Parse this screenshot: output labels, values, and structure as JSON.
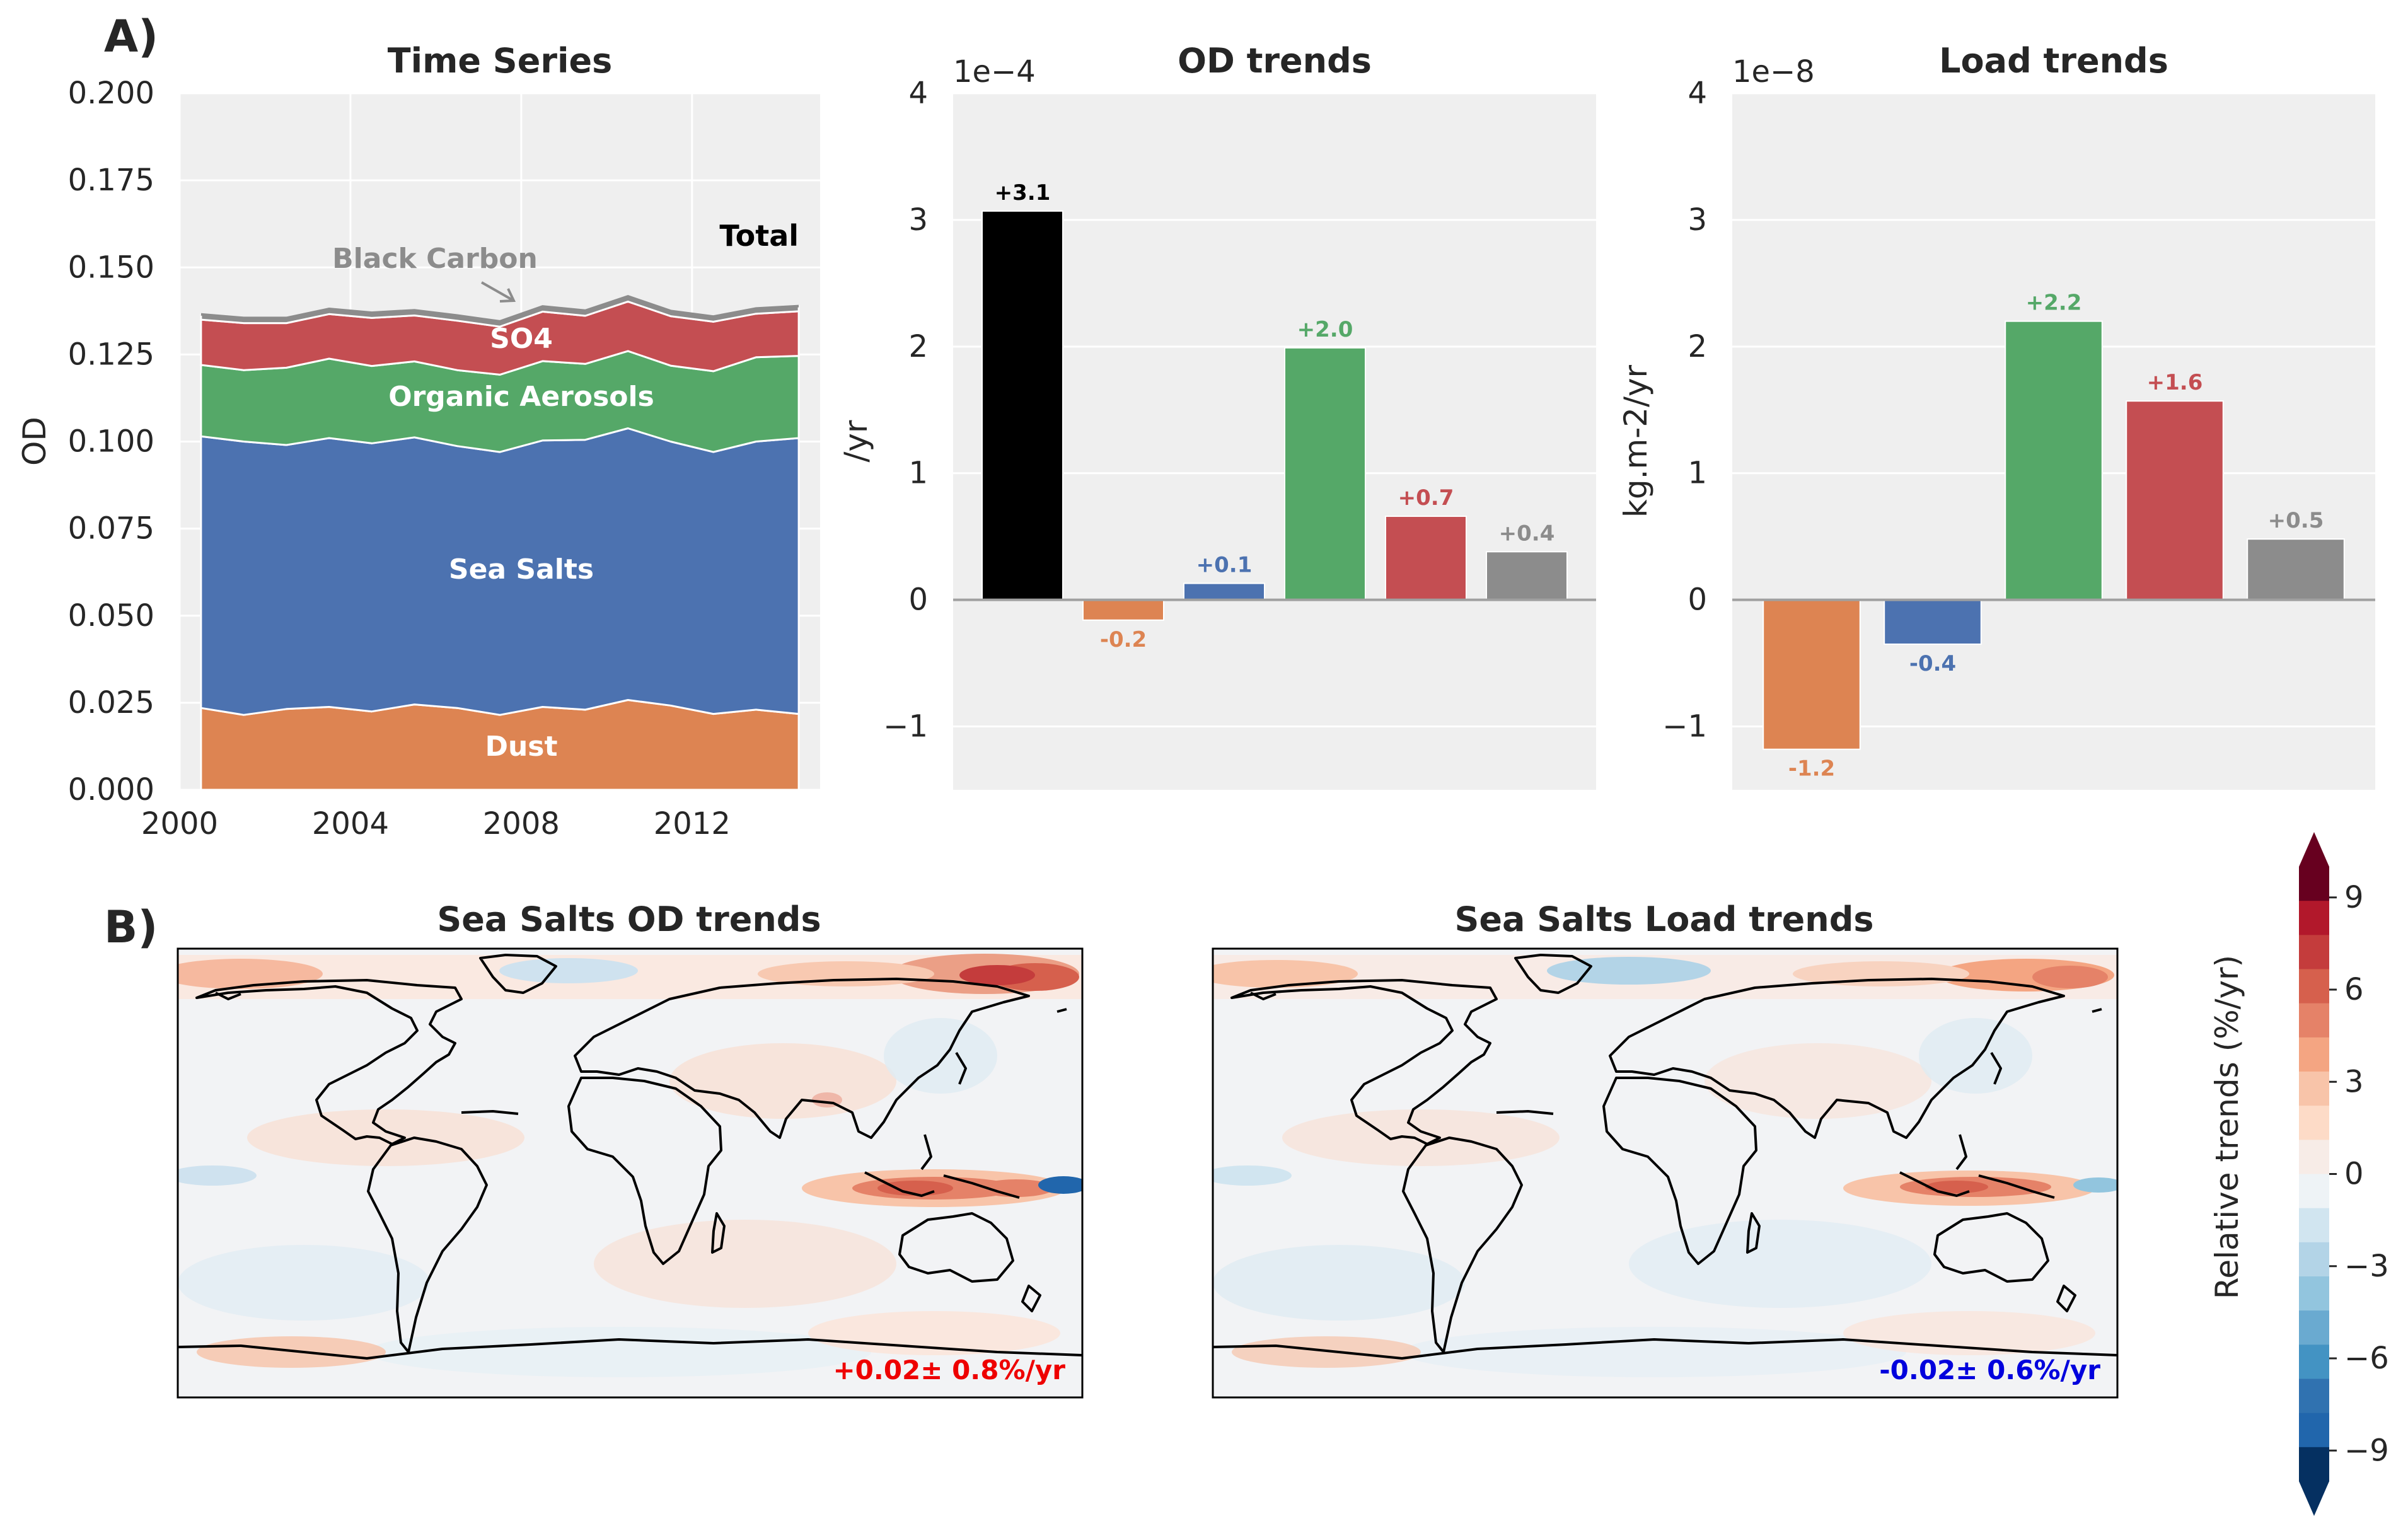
{
  "panel_letters": {
    "a": "A)",
    "b": "B)"
  },
  "colors": {
    "dust": "#dd8452",
    "sea_salts": "#4c72b0",
    "organic": "#55a868",
    "so4": "#c44e52",
    "black_carbon": "#8c8c8c",
    "total": "#000000",
    "panel_bg": "#efefef",
    "neg_annotation": "#0000dd",
    "pos_annotation": "#ee0000"
  },
  "chart_data": [
    {
      "type": "area",
      "title": "Time Series",
      "ylabel": "OD",
      "xlabel": "",
      "xlim": [
        2000,
        2015
      ],
      "ylim": [
        0,
        0.2
      ],
      "xticks": [
        "2000",
        "2004",
        "2008",
        "2012"
      ],
      "yticks": [
        "0.000",
        "0.025",
        "0.050",
        "0.075",
        "0.100",
        "0.125",
        "0.150",
        "0.175",
        "0.200"
      ],
      "grid": true,
      "x": [
        2000.5,
        2001.5,
        2002.5,
        2003.5,
        2004.5,
        2005.5,
        2006.5,
        2007.5,
        2008.5,
        2009.5,
        2010.5,
        2011.5,
        2012.5,
        2013.5,
        2014.5
      ],
      "series": [
        {
          "name": "Dust",
          "color_key": "dust",
          "values": [
            0.0235,
            0.0215,
            0.0232,
            0.0238,
            0.0225,
            0.0245,
            0.0235,
            0.0215,
            0.0238,
            0.023,
            0.0258,
            0.0242,
            0.0218,
            0.023,
            0.0218
          ]
        },
        {
          "name": "Sea Salts",
          "color_key": "sea_salts",
          "values": [
            0.078,
            0.0785,
            0.0758,
            0.0772,
            0.077,
            0.0767,
            0.0752,
            0.0755,
            0.0765,
            0.0775,
            0.078,
            0.0758,
            0.0752,
            0.077,
            0.0792
          ]
        },
        {
          "name": "Organic Aerosols",
          "color_key": "organic",
          "values": [
            0.0205,
            0.0205,
            0.0222,
            0.0228,
            0.0222,
            0.0218,
            0.0218,
            0.0222,
            0.0228,
            0.0218,
            0.0222,
            0.0218,
            0.0232,
            0.0242,
            0.0236
          ]
        },
        {
          "name": "SO4",
          "color_key": "so4",
          "values": [
            0.013,
            0.0135,
            0.0128,
            0.0128,
            0.0138,
            0.0132,
            0.0142,
            0.0138,
            0.0142,
            0.0138,
            0.0142,
            0.0142,
            0.0142,
            0.0125,
            0.0128
          ]
        },
        {
          "name": "Black Carbon",
          "color_key": "black_carbon",
          "values": [
            0.0015,
            0.0015,
            0.0015,
            0.0015,
            0.0015,
            0.0015,
            0.0015,
            0.0015,
            0.0015,
            0.0015,
            0.0015,
            0.0015,
            0.0015,
            0.0015,
            0.0015
          ]
        }
      ],
      "labels": {
        "dust": "Dust",
        "sea_salts": "Sea Salts",
        "organic": "Organic Aerosols",
        "so4": "SO4",
        "black_carbon": "Black Carbon",
        "total": "Total"
      }
    },
    {
      "type": "bar",
      "title": "OD trends",
      "ylabel": "/yr",
      "offset_text": "1e−4",
      "ylim": [
        -1.5,
        4
      ],
      "yticks": [
        "−1",
        "0",
        "1",
        "2",
        "3",
        "4"
      ],
      "grid": true,
      "bars": [
        {
          "value": 3.07,
          "label": "+3.1",
          "color_key": "total"
        },
        {
          "value": -0.16,
          "label": "-0.2",
          "color_key": "dust"
        },
        {
          "value": 0.13,
          "label": "+0.1",
          "color_key": "sea_salts"
        },
        {
          "value": 1.99,
          "label": "+2.0",
          "color_key": "organic"
        },
        {
          "value": 0.66,
          "label": "+0.7",
          "color_key": "so4"
        },
        {
          "value": 0.38,
          "label": "+0.4",
          "color_key": "black_carbon"
        }
      ]
    },
    {
      "type": "bar",
      "title": "Load trends",
      "ylabel": "kg.m-2/yr",
      "offset_text": "1e−8",
      "ylim": [
        -1.5,
        4
      ],
      "yticks": [
        "−1",
        "0",
        "1",
        "2",
        "3",
        "4"
      ],
      "grid": true,
      "bars": [
        {
          "value": -1.18,
          "label": "-1.2",
          "color_key": "dust"
        },
        {
          "value": -0.35,
          "label": "-0.4",
          "color_key": "sea_salts"
        },
        {
          "value": 2.2,
          "label": "+2.2",
          "color_key": "organic"
        },
        {
          "value": 1.57,
          "label": "+1.6",
          "color_key": "so4"
        },
        {
          "value": 0.48,
          "label": "+0.5",
          "color_key": "black_carbon"
        }
      ]
    },
    {
      "type": "heatmap",
      "title": "Sea Salts OD trends",
      "annotation": "+0.02± 0.8%/yr",
      "annotation_color_key": "pos_annotation"
    },
    {
      "type": "heatmap",
      "title": "Sea Salts Load trends",
      "annotation": "-0.02± 0.6%/yr",
      "annotation_color_key": "neg_annotation"
    }
  ],
  "colorbar": {
    "label": "Relative trends (%/yr)",
    "range": [
      -10,
      10
    ],
    "ticks": [
      "9",
      "6",
      "3",
      "0",
      "−3",
      "−6",
      "−9"
    ],
    "colors": [
      "#67001f",
      "#b2182b",
      "#c43c3c",
      "#d6604d",
      "#e58268",
      "#f4a582",
      "#f8c4a9",
      "#fddbc7",
      "#f7ece7",
      "#eef3f6",
      "#d1e5f0",
      "#b3d4e7",
      "#92c5de",
      "#6aaad0",
      "#4393c3",
      "#3072b0",
      "#2166ac",
      "#053061"
    ]
  }
}
